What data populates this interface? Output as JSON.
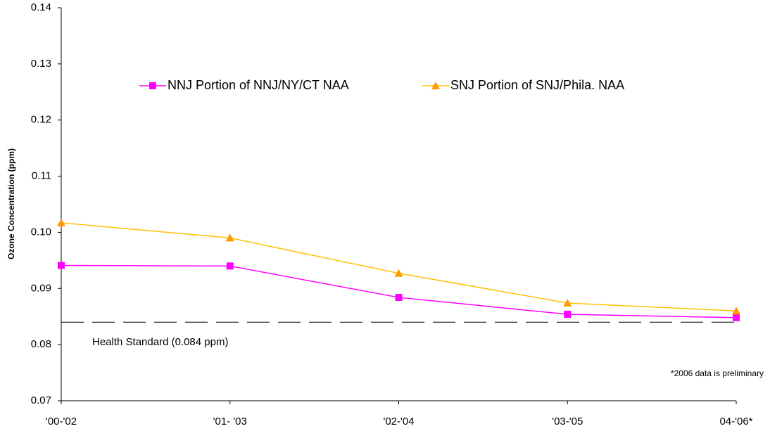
{
  "chart_data": {
    "type": "line",
    "y_label": "Ozone Concentration (ppm)",
    "categories": [
      "'00-'02",
      "'01- '03",
      "'02-'04",
      "'03-'05",
      "04-'06*"
    ],
    "series": [
      {
        "name": "NNJ Portion of NNJ/NY/CT NAA",
        "color": "#ff00ff",
        "marker_color": "#ff00ff",
        "marker": "square",
        "values": [
          0.0941,
          0.094,
          0.0884,
          0.0854,
          0.0848
        ]
      },
      {
        "name": "SNJ Portion of SNJ/Phila. NAA",
        "color": "#ffc000",
        "marker_color": "#ff9900",
        "marker": "triangle",
        "values": [
          0.1017,
          0.099,
          0.0927,
          0.0874,
          0.086
        ]
      }
    ],
    "reference_line": {
      "value": 0.084,
      "label": "Health Standard (0.084 ppm)",
      "color": "#000000"
    },
    "note": "*2006 data is preliminary",
    "ylim": [
      0.07,
      0.14
    ],
    "yticks": [
      0.07,
      0.08,
      0.09,
      {
        "value": 0.1,
        "label": "0.10"
      },
      0.11,
      0.12,
      0.13,
      0.14
    ],
    "grid": false,
    "legend": "top"
  }
}
